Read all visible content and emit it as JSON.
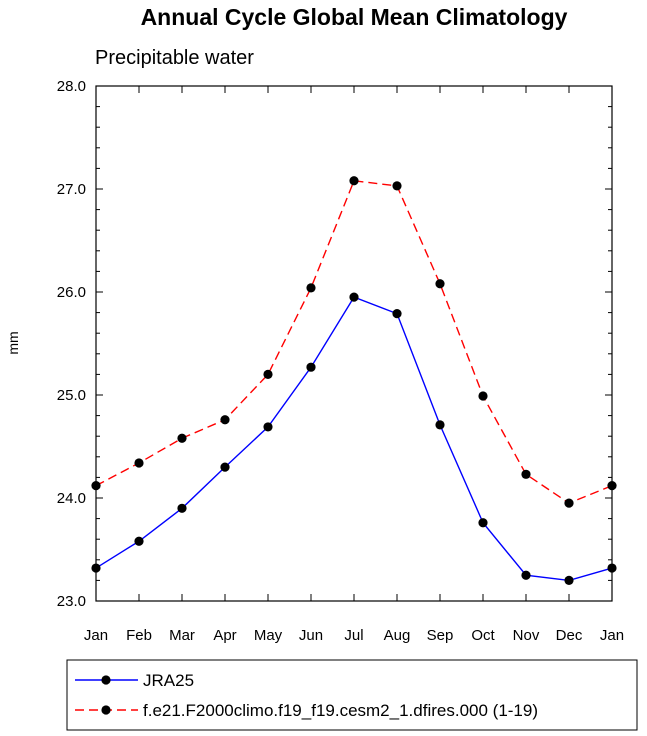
{
  "chart_data": {
    "type": "line",
    "title": "Annual Cycle Global Mean Climatology",
    "subtitle": "Precipitable water",
    "ylabel": "mm",
    "xlabel": "",
    "categories": [
      "Jan",
      "Feb",
      "Mar",
      "Apr",
      "May",
      "Jun",
      "Jul",
      "Aug",
      "Sep",
      "Oct",
      "Nov",
      "Dec",
      "Jan"
    ],
    "ylim": [
      23.0,
      28.0
    ],
    "yticks": [
      "23.0",
      "24.0",
      "25.0",
      "26.0",
      "27.0",
      "28.0"
    ],
    "grid": false,
    "legend_position": "bottom",
    "series": [
      {
        "name": "JRA25",
        "color": "#0000ff",
        "line_style": "solid",
        "marker": "filled-circle",
        "values": [
          23.32,
          23.58,
          23.9,
          24.3,
          24.69,
          25.27,
          25.95,
          25.79,
          24.71,
          23.76,
          23.25,
          23.2,
          23.32
        ]
      },
      {
        "name": "f.e21.F2000climo.f19_f19.cesm2_1.dfires.000 (1-19)",
        "color": "#ff0000",
        "line_style": "dashed",
        "marker": "filled-circle",
        "values": [
          24.12,
          24.34,
          24.58,
          24.76,
          25.2,
          26.04,
          27.08,
          27.03,
          26.08,
          24.99,
          24.23,
          23.95,
          24.12
        ]
      }
    ]
  }
}
